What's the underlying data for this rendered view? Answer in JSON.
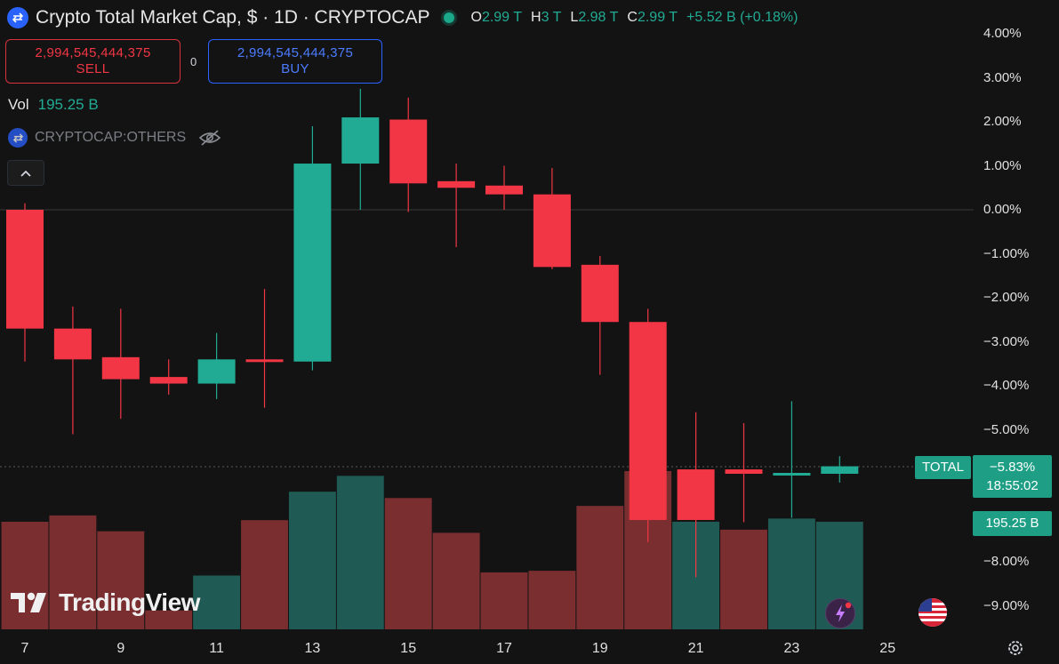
{
  "header": {
    "title": "Crypto Total Market Cap, $ · 1D · CRYPTOCAP",
    "ohlc": [
      {
        "key": "O",
        "value": "2.99 T"
      },
      {
        "key": "H",
        "value": "3 T"
      },
      {
        "key": "L",
        "value": "2.98 T"
      },
      {
        "key": "C",
        "value": "2.99 T"
      }
    ],
    "change": "+5.52 B (+0.18%)"
  },
  "trade": {
    "sell_price": "2,994,545,444,375",
    "sell_label": "SELL",
    "spread": "0",
    "buy_price": "2,994,545,444,375",
    "buy_label": "BUY"
  },
  "volume": {
    "label": "Vol",
    "value": "195.25 B"
  },
  "comparison": {
    "symbol": "CRYPTOCAP:OTHERS",
    "icon": "eye-off-icon"
  },
  "tags": {
    "symbol": "TOTAL",
    "price": "−5.83%",
    "countdown": "18:55:02",
    "volume": "195.25 B"
  },
  "branding": {
    "logo_text": "TradingView"
  },
  "colors": {
    "up": "#22ab94",
    "down": "#f23645",
    "vol_up": "#1f5b54",
    "vol_down": "#7a2e30",
    "background": "#131313"
  },
  "chart_data": {
    "type": "candlestick",
    "y_axis": {
      "unit": "%",
      "ticks": [
        "4.00%",
        "3.00%",
        "2.00%",
        "1.00%",
        "0.00%",
        "−1.00%",
        "−2.00%",
        "−3.00%",
        "−4.00%",
        "−5.00%",
        "−8.00%",
        "−9.00%"
      ],
      "range": [
        -9.5,
        4.2
      ]
    },
    "x_axis": {
      "ticks": [
        "7",
        "9",
        "11",
        "13",
        "15",
        "17",
        "19",
        "21",
        "23",
        "25"
      ],
      "range": [
        6.5,
        25.8
      ]
    },
    "current_value": -5.83,
    "candles": [
      {
        "day": 7,
        "open": 0.0,
        "high": 0.15,
        "low": -3.45,
        "close": -2.7
      },
      {
        "day": 8,
        "open": -2.7,
        "high": -2.2,
        "low": -5.1,
        "close": -3.4
      },
      {
        "day": 9,
        "open": -3.35,
        "high": -2.25,
        "low": -4.75,
        "close": -3.85
      },
      {
        "day": 10,
        "open": -3.8,
        "high": -3.4,
        "low": -4.2,
        "close": -3.95
      },
      {
        "day": 11,
        "open": -3.95,
        "high": -2.8,
        "low": -4.3,
        "close": -3.4
      },
      {
        "day": 12,
        "open": -3.4,
        "high": -1.8,
        "low": -4.5,
        "close": -3.45
      },
      {
        "day": 13,
        "open": -3.45,
        "high": 1.9,
        "low": -3.65,
        "close": 1.05
      },
      {
        "day": 14,
        "open": 1.05,
        "high": 2.75,
        "low": 0.0,
        "close": 2.1
      },
      {
        "day": 15,
        "open": 2.05,
        "high": 2.55,
        "low": -0.05,
        "close": 0.6
      },
      {
        "day": 16,
        "open": 0.65,
        "high": 1.05,
        "low": -0.85,
        "close": 0.5
      },
      {
        "day": 17,
        "open": 0.55,
        "high": 1.0,
        "low": 0.0,
        "close": 0.35
      },
      {
        "day": 18,
        "open": 0.35,
        "high": 0.95,
        "low": -1.35,
        "close": -1.3
      },
      {
        "day": 19,
        "open": -1.25,
        "high": -1.05,
        "low": -3.75,
        "close": -2.55
      },
      {
        "day": 20,
        "open": -2.55,
        "high": -2.25,
        "low": -7.55,
        "close": -7.05
      },
      {
        "day": 21,
        "open": -5.9,
        "high": -4.6,
        "low": -8.35,
        "close": -7.05
      },
      {
        "day": 22,
        "open": -5.9,
        "high": -4.85,
        "low": -7.1,
        "close": -6.0
      },
      {
        "day": 23,
        "open": -6.0,
        "high": -4.35,
        "low": -7.0,
        "close": -5.98
      },
      {
        "day": 24,
        "open": -6.0,
        "high": -5.6,
        "low": -6.2,
        "close": -5.83
      }
    ],
    "volume_bars": [
      {
        "day": 7,
        "direction": "down",
        "relative": 0.68
      },
      {
        "day": 8,
        "direction": "down",
        "relative": 0.72
      },
      {
        "day": 9,
        "direction": "down",
        "relative": 0.62
      },
      {
        "day": 10,
        "direction": "down",
        "relative": 0.12
      },
      {
        "day": 11,
        "direction": "up",
        "relative": 0.34
      },
      {
        "day": 12,
        "direction": "down",
        "relative": 0.69
      },
      {
        "day": 13,
        "direction": "up",
        "relative": 0.87
      },
      {
        "day": 14,
        "direction": "up",
        "relative": 0.97
      },
      {
        "day": 15,
        "direction": "down",
        "relative": 0.83
      },
      {
        "day": 16,
        "direction": "down",
        "relative": 0.61
      },
      {
        "day": 17,
        "direction": "down",
        "relative": 0.36
      },
      {
        "day": 18,
        "direction": "down",
        "relative": 0.37
      },
      {
        "day": 19,
        "direction": "down",
        "relative": 0.78
      },
      {
        "day": 20,
        "direction": "down",
        "relative": 1.0
      },
      {
        "day": 21,
        "direction": "up",
        "relative": 0.68
      },
      {
        "day": 22,
        "direction": "down",
        "relative": 0.63
      },
      {
        "day": 23,
        "direction": "up",
        "relative": 0.7
      },
      {
        "day": 24,
        "direction": "up",
        "relative": 0.68
      }
    ]
  }
}
